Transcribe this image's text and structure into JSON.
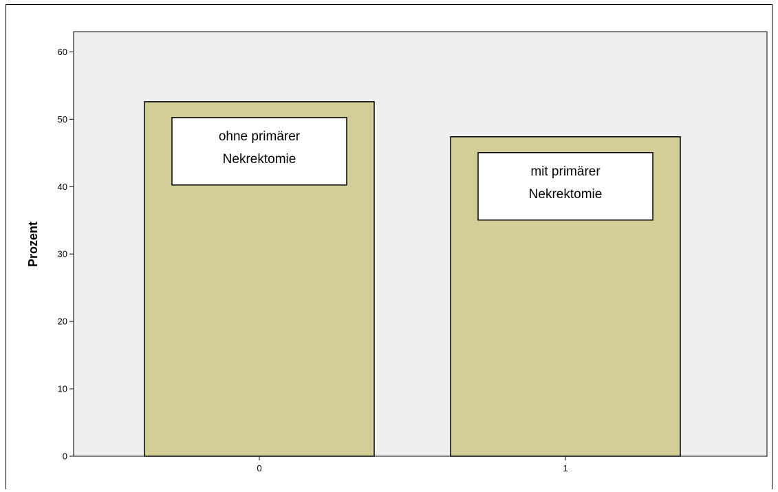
{
  "chart_data": {
    "type": "bar",
    "categories": [
      "0",
      "1"
    ],
    "values": [
      52.6,
      47.4
    ],
    "ylabel": "Prozent",
    "xlabel": "",
    "ylim": [
      0,
      63
    ],
    "yticks": [
      "0",
      "10",
      "20",
      "30",
      "40",
      "50",
      "60"
    ],
    "grid": false,
    "annotations": [
      {
        "category": "0",
        "lines": [
          "ohne primärer",
          "Nekrektomie"
        ]
      },
      {
        "category": "1",
        "lines": [
          "mit primärer",
          "Nekrektomie"
        ]
      }
    ],
    "colors": {
      "bar_fill": "#d3cd98",
      "plot_background": "#efefef",
      "bar_stroke": "#000000"
    }
  }
}
